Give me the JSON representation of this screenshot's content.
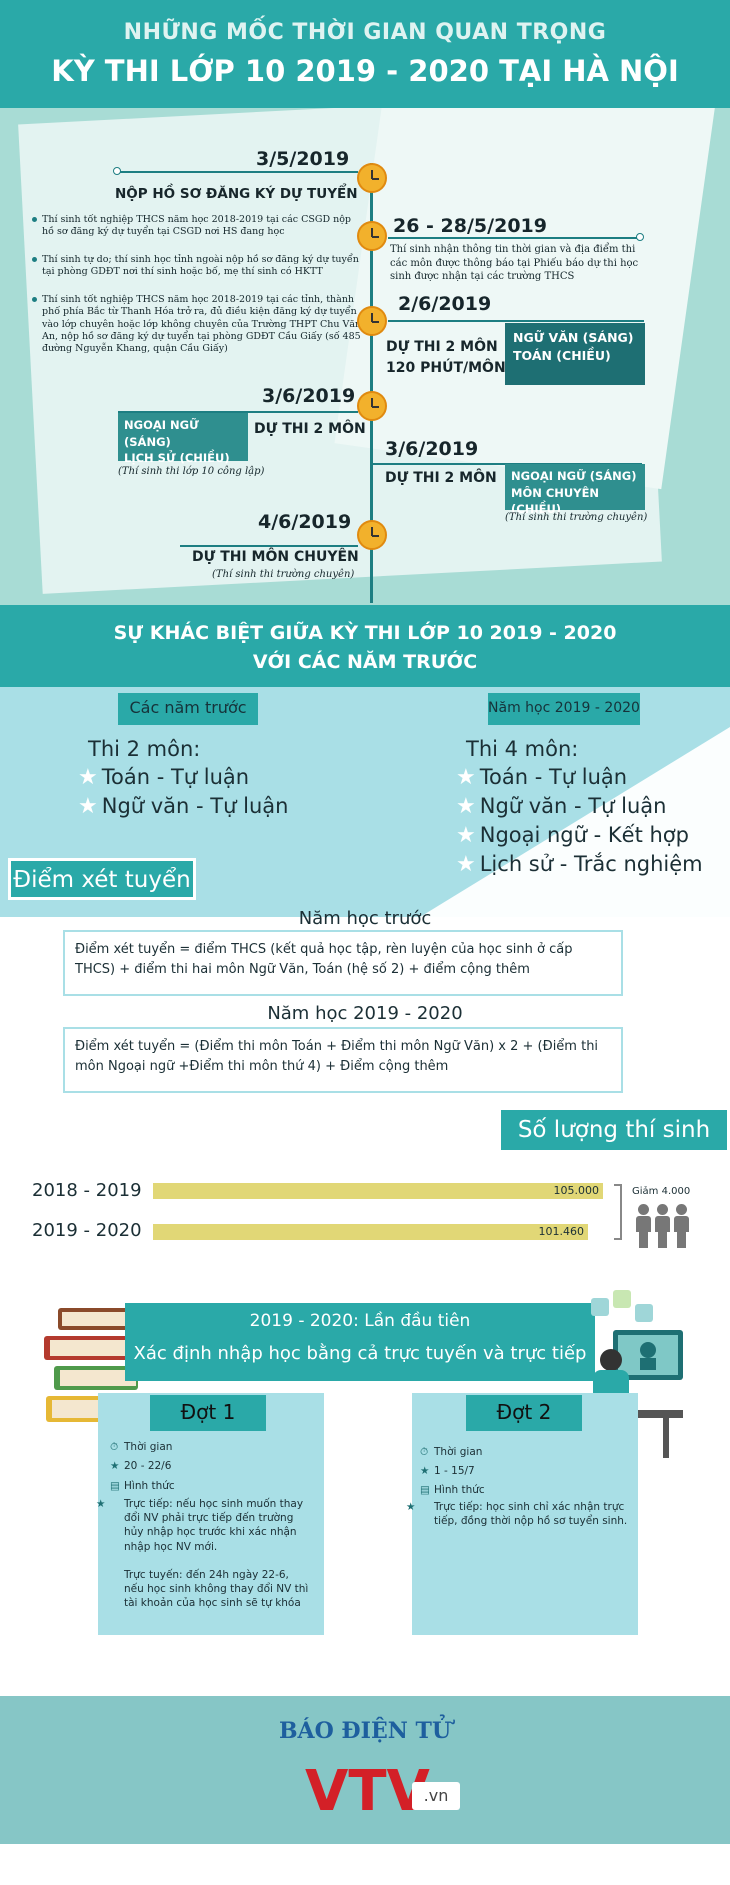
{
  "header": {
    "line1": "NHỮNG MỐC THỜI GIAN QUAN TRỌNG",
    "line2": "KỲ THI LỚP 10 2019 - 2020 TẠI HÀ NỘI"
  },
  "timeline": {
    "m1": {
      "date": "3/5/2019",
      "heading": "NỘP HỒ SƠ ĐĂNG KÝ DỰ TUYỂN",
      "bullets": [
        "Thí sinh tốt nghiệp THCS năm học 2018-2019 tại các CSGD nộp hồ sơ đăng ký dự tuyển tại CSGD nơi HS đang học",
        "Thí sinh tự do; thí sinh học tỉnh ngoài nộp hồ sơ đăng ký dự tuyển tại phòng GDĐT nơi thí sinh hoặc bố, mẹ thí sinh có HKTT",
        "Thí sinh tốt nghiệp THCS năm học 2018-2019 tại các tỉnh, thành phố phía Bắc từ Thanh Hóa trở ra, đủ điều kiện đăng ký dự tuyển vào lớp chuyên hoặc lớp không chuyên của Trường THPT Chu Văn An, nộp hồ sơ đăng ký dự tuyển tại phòng GDĐT Cầu Giấy (số 485 đường Nguyễn Khang, quận Cầu Giấy)"
      ]
    },
    "m2": {
      "date": "26 - 28/5/2019",
      "note": "Thí sinh nhận thông tin thời gian và địa điểm thi các môn được thông báo tại Phiếu báo dự thi học sinh được nhận tại các trường THCS"
    },
    "m3": {
      "date": "2/6/2019",
      "left_line1": "DỰ THI 2 MÔN",
      "left_line2": "120 PHÚT/MÔN",
      "subj1": "NGỮ VĂN (SÁNG)",
      "subj2": "TOÁN (CHIỀU)"
    },
    "m4": {
      "date": "3/6/2019",
      "label": "DỰ THI 2 MÔN",
      "subj1": "NGOẠI NGỮ (SÁNG)",
      "subj2": "LỊCH SỬ (CHIỀU)",
      "note": "(Thí sinh thi lớp 10 công lập)"
    },
    "m5": {
      "date": "3/6/2019",
      "label": "DỰ THI 2 MÔN",
      "subj1": "NGOẠI NGỮ (SÁNG)",
      "subj2": "MÔN CHUYÊN (CHIỀU)",
      "note": "(Thí sinh thi trường chuyên)"
    },
    "m6": {
      "date": "4/6/2019",
      "heading": "DỰ THI MÔN CHUYÊN",
      "note": "(Thí sinh thi trường chuyên)"
    }
  },
  "difference": {
    "title_line1": "SỰ KHÁC BIỆT GIỮA KỲ THI LỚP 10 2019 - 2020",
    "title_line2": "VỚI CÁC NĂM TRƯỚC",
    "left": {
      "tag": "Các năm trước",
      "title": "Thi 2 môn:",
      "items": [
        "Toán - Tự luận",
        "Ngữ văn - Tự luận"
      ]
    },
    "right": {
      "tag": "Năm học 2019 - 2020",
      "title": "Thi 4 môn:",
      "items": [
        "Toán - Tự luận",
        "Ngữ văn - Tự luận",
        "Ngoại ngữ - Kết hợp",
        "Lịch sử - Trắc nghiệm"
      ]
    }
  },
  "score": {
    "tag": "Điểm xét tuyển",
    "prev_title": "Năm học trước",
    "prev_formula": "Điểm xét tuyển = điểm THCS (kết quả học tập, rèn luyện của học sinh ở cấp THCS) + điểm thi hai môn Ngữ Văn, Toán (hệ số 2) + điểm cộng thêm",
    "new_title": "Năm học 2019 - 2020",
    "new_formula": "Điểm xét tuyển = (Điểm thi môn Toán + Điểm thi môn Ngữ Văn) x 2 + (Điểm thi môn Ngoại ngữ +Điểm  thi môn thứ 4) + Điểm cộng thêm"
  },
  "candidates": {
    "tag": "Số lượng thí sinh",
    "decrease_label": "Giảm 4.000",
    "chart_data": {
      "type": "bar",
      "orientation": "horizontal",
      "categories": [
        "2018 - 2019",
        "2019 - 2020"
      ],
      "values": [
        105000,
        101460
      ],
      "value_labels": [
        "105.000",
        "101.460"
      ],
      "title": "Số lượng thí sinh",
      "xlim": [
        0,
        105000
      ]
    }
  },
  "enroll": {
    "banner_line1": "2019 - 2020: Lần đầu tiên",
    "banner_line2": "Xác định nhập học bằng cả  trực tuyến và trực tiếp",
    "round1": {
      "tag": "Đợt 1",
      "time_label": "Thời gian",
      "time_value": "20 - 22/6",
      "form_label": "Hình thức",
      "item1": "Trực tiếp: nếu học sinh muốn thay đổi NV phải trực tiếp đến trường hủy nhập học trước khi xác nhận nhập học NV mới.",
      "item2": "Trực tuyến: đến 24h ngày 22-6, nếu học sinh không thay đổi NV thì tài khoản của học sinh sẽ tự khóa"
    },
    "round2": {
      "tag": "Đợt 2",
      "time_label": "Thời gian",
      "time_value": "1 - 15/7",
      "form_label": "Hình thức",
      "item1": "Trực tiếp: học sinh chỉ xác nhận trực tiếp, đồng thời nộp hồ sơ tuyển sinh."
    }
  },
  "footer": {
    "label": "BÁO ĐIỆN TỬ",
    "logo": "VTV",
    "domain": ".vn"
  },
  "colors": {
    "teal": "#2aa9a8",
    "dark_teal": "#1e6f73",
    "light_blue": "#a9dfe6",
    "bar": "#e1d776",
    "clock": "#f2b12c"
  }
}
